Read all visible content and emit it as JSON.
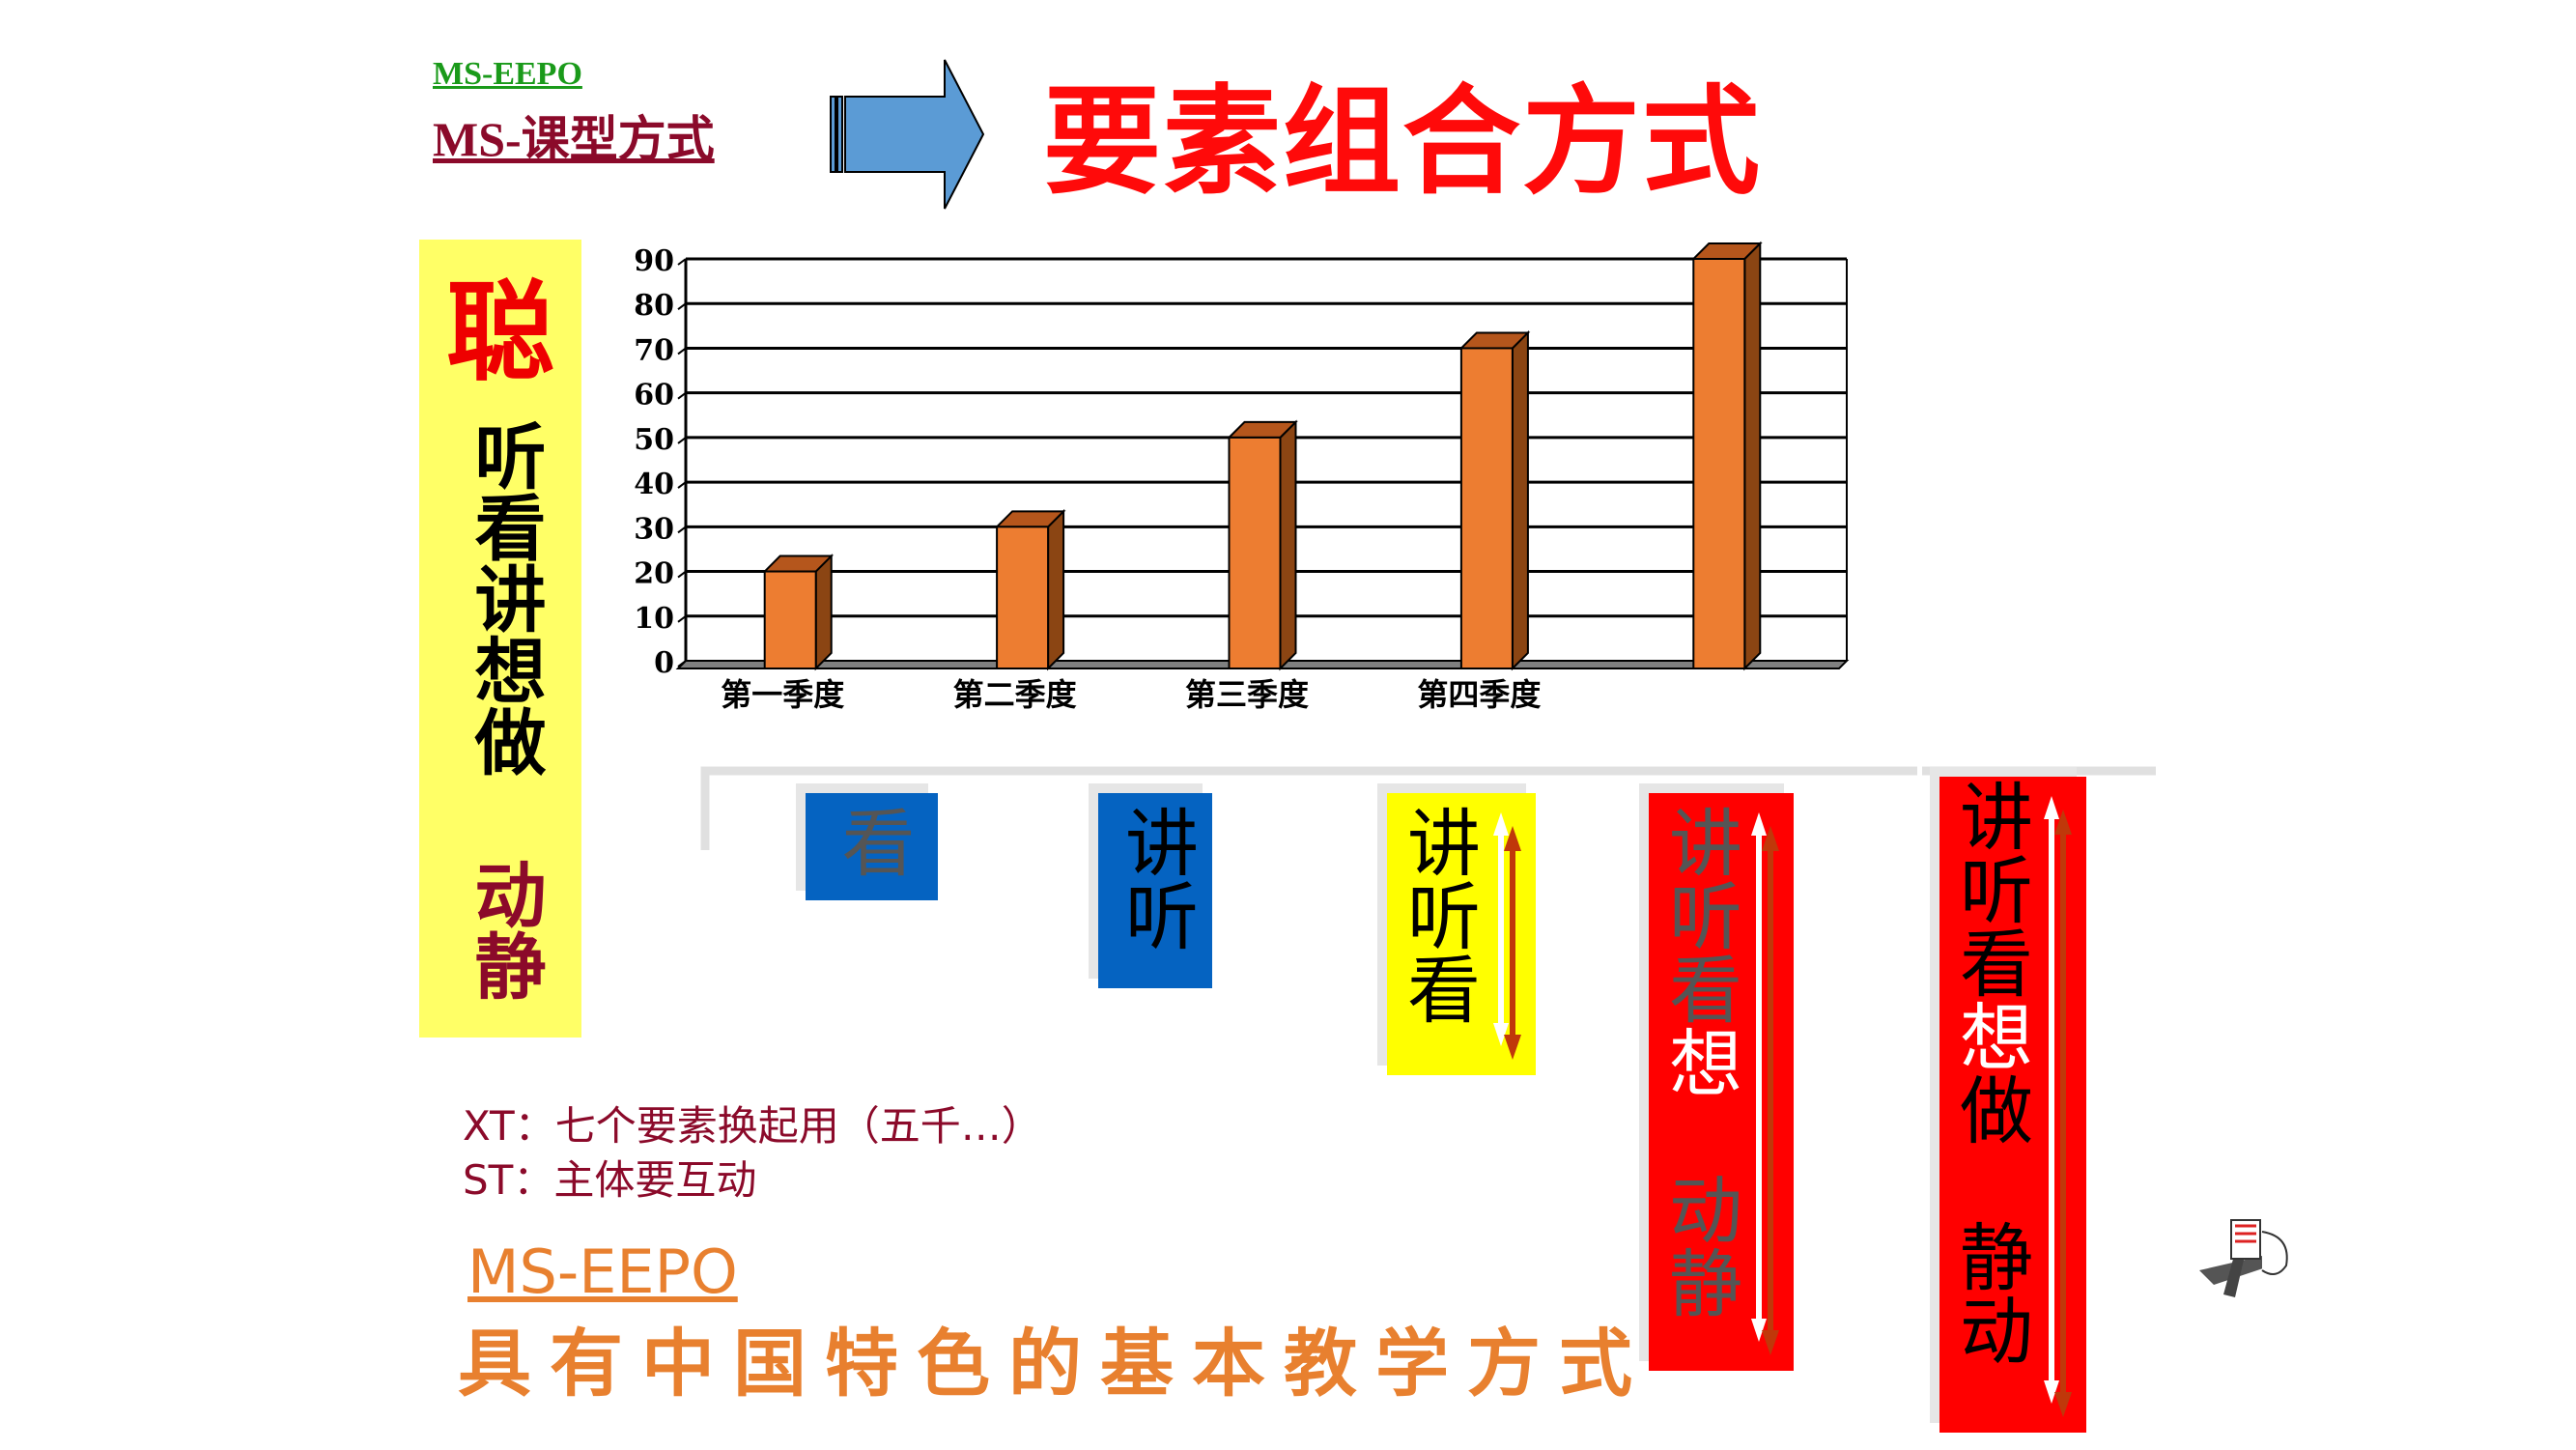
{
  "header": {
    "subtitle_brand": "MS-EEPO",
    "subtitle_course": "MS-课型方式",
    "title": "要素组合方式",
    "arrow_color": "#5b9bd5"
  },
  "left_panel": {
    "top_char": "聪",
    "elements": "听看讲想做",
    "motion": "动静",
    "background": "#ffff66"
  },
  "chart_data": {
    "type": "bar",
    "style": "3d-column",
    "categories": [
      "第一季度",
      "第二季度",
      "第三季度",
      "第四季度",
      ""
    ],
    "values": [
      20,
      30,
      50,
      70,
      90
    ],
    "yticks": [
      "0",
      "10",
      "20",
      "30",
      "40",
      "50",
      "60",
      "70",
      "80",
      "90"
    ],
    "ylim": [
      0,
      90
    ],
    "grid": true,
    "bar_color": "#ed7d31",
    "title": "",
    "xlabel": "",
    "ylabel": ""
  },
  "combos": [
    {
      "bg": "#0563c1",
      "lines": [
        {
          "text": "看",
          "color": "#555555"
        }
      ],
      "arrow": false
    },
    {
      "bg": "#0563c1",
      "lines": [
        {
          "text": "讲听",
          "color": "#000000"
        }
      ],
      "arrow": false
    },
    {
      "bg": "#ffff00",
      "lines": [
        {
          "text": "讲听看",
          "color": "#000000"
        }
      ],
      "arrow": true
    },
    {
      "bg": "#ff0000",
      "lines": [
        {
          "text": "讲听看",
          "color": "#555555"
        },
        {
          "text": "想",
          "color": "#ffffff"
        },
        {
          "text": "　",
          "color": "#555555"
        },
        {
          "text": "动静",
          "color": "#555555"
        }
      ],
      "arrow": true
    },
    {
      "bg": "#ff0000",
      "lines": [
        {
          "text": "讲听看",
          "color": "#000000"
        },
        {
          "text": "想",
          "color": "#ffffff"
        },
        {
          "text": "做　静动",
          "color": "#000000"
        }
      ],
      "arrow": true
    }
  ],
  "notes": {
    "xt": "XT：七个要素换起用（五千…）",
    "st": "ST：主体要互动"
  },
  "footer": {
    "brand": "MS-EEPO",
    "slogan": "具有中国特色的基本教学方式"
  }
}
